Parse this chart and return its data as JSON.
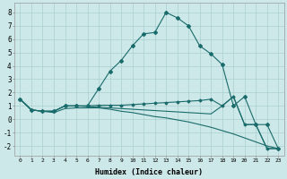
{
  "xlabel": "Humidex (Indice chaleur)",
  "bg_color": "#cde8e8",
  "grid_color": "#aacfcf",
  "line_color": "#1a6b6b",
  "line1_x": [
    0,
    1,
    2,
    3,
    4,
    5,
    6,
    7,
    8,
    9,
    10,
    11,
    12,
    13,
    14,
    15,
    16,
    17,
    18,
    19,
    20,
    21,
    22,
    23
  ],
  "line1_y": [
    1.5,
    0.7,
    0.6,
    0.6,
    1.0,
    1.0,
    1.0,
    2.3,
    3.6,
    4.4,
    5.5,
    6.4,
    6.5,
    8.0,
    7.6,
    7.0,
    5.5,
    4.9,
    4.1,
    1.0,
    1.7,
    -0.4,
    -0.4,
    -2.2
  ],
  "line2_x": [
    0,
    1,
    2,
    3,
    4,
    5,
    6,
    7,
    8,
    9,
    10,
    11,
    12,
    13,
    14,
    15,
    16,
    17,
    18,
    19,
    20,
    21,
    22,
    23
  ],
  "line2_y": [
    1.5,
    0.7,
    0.6,
    0.6,
    1.0,
    1.0,
    1.0,
    1.05,
    1.05,
    1.05,
    1.1,
    1.15,
    1.2,
    1.25,
    1.3,
    1.35,
    1.4,
    1.5,
    1.0,
    1.7,
    -0.4,
    -0.4,
    -2.2,
    -2.2
  ],
  "line3_x": [
    0,
    1,
    2,
    3,
    4,
    5,
    6,
    7,
    8,
    9,
    10,
    11,
    12,
    13,
    14,
    15,
    16,
    17,
    18,
    19,
    20,
    21,
    22,
    23
  ],
  "line3_y": [
    1.5,
    0.7,
    0.6,
    0.5,
    0.8,
    0.85,
    0.85,
    0.85,
    0.75,
    0.6,
    0.5,
    0.35,
    0.2,
    0.1,
    -0.05,
    -0.2,
    -0.4,
    -0.6,
    -0.85,
    -1.1,
    -1.4,
    -1.7,
    -2.0,
    -2.2
  ],
  "line4_x": [
    0,
    1,
    2,
    3,
    4,
    5,
    6,
    7,
    8,
    9,
    10,
    11,
    12,
    13,
    14,
    15,
    16,
    17,
    18,
    19,
    20,
    21,
    22,
    23
  ],
  "line4_y": [
    1.5,
    0.7,
    0.6,
    0.6,
    1.0,
    1.0,
    0.95,
    0.9,
    0.85,
    0.8,
    0.75,
    0.7,
    0.65,
    0.6,
    0.55,
    0.5,
    0.45,
    0.4,
    1.0,
    1.7,
    -0.4,
    -0.4,
    -2.2,
    -2.2
  ],
  "ylim": [
    -2.7,
    8.7
  ],
  "xlim": [
    -0.5,
    23.5
  ],
  "yticks": [
    -2,
    -1,
    0,
    1,
    2,
    3,
    4,
    5,
    6,
    7,
    8
  ],
  "xticks": [
    0,
    1,
    2,
    3,
    4,
    5,
    6,
    7,
    8,
    9,
    10,
    11,
    12,
    13,
    14,
    15,
    16,
    17,
    18,
    19,
    20,
    21,
    22,
    23
  ]
}
